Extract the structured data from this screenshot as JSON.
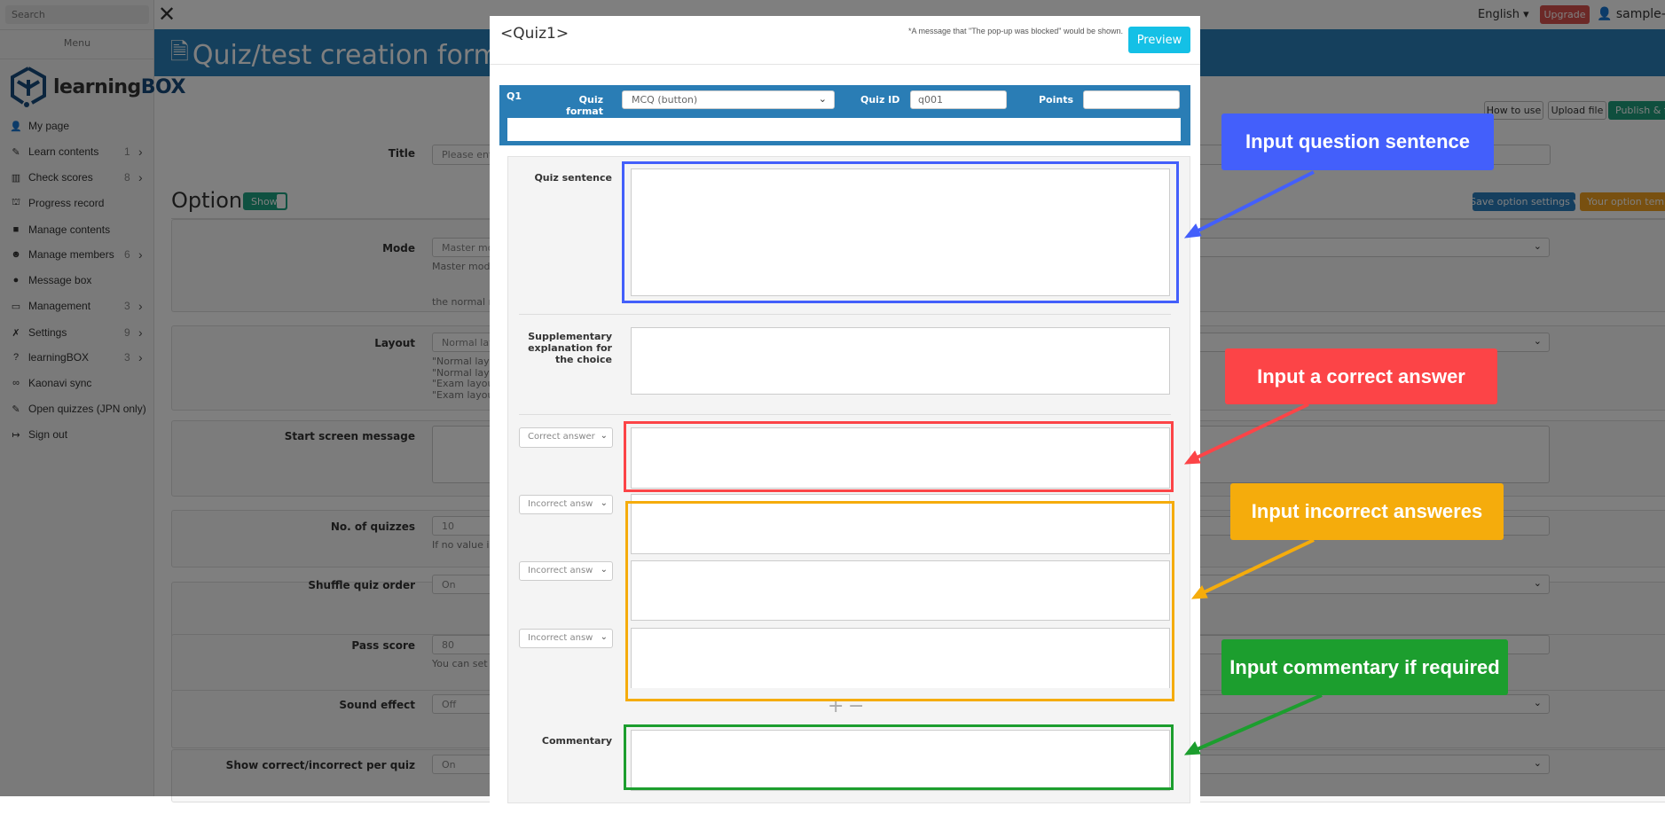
{
  "topbar": {
    "language": "English ▾",
    "upgrade": "Upgrade",
    "user": "sample-d"
  },
  "sidebar": {
    "search_placeholder": "Search",
    "menu_label": "Menu",
    "logo": "learningBOX",
    "items": [
      {
        "label": "My page",
        "icon": "user-icon",
        "glyph": "👤"
      },
      {
        "label": "Learn contents",
        "count": "1",
        "icon": "pencil-icon",
        "glyph": "✎"
      },
      {
        "label": "Check scores",
        "count": "8",
        "icon": "bar-chart-icon",
        "glyph": "▥"
      },
      {
        "label": "Progress record",
        "icon": "progress-icon",
        "glyph": "⛫"
      },
      {
        "label": "Manage contents",
        "icon": "folder-icon",
        "glyph": "■"
      },
      {
        "label": "Manage members",
        "count": "6",
        "icon": "users-icon",
        "glyph": "☻"
      },
      {
        "label": "Message box",
        "icon": "comments-icon",
        "glyph": "●"
      },
      {
        "label": "Management",
        "count": "3",
        "icon": "monitor-icon",
        "glyph": "▭"
      },
      {
        "label": "Settings",
        "count": "9",
        "icon": "wrench-icon",
        "glyph": "✗"
      },
      {
        "label": "learningBOX",
        "count": "3",
        "icon": "question-icon",
        "glyph": "?"
      },
      {
        "label": "Kaonavi sync",
        "icon": "link-icon",
        "glyph": "∞"
      },
      {
        "label": "Open quizzes (JPN only)",
        "icon": "pencil-icon",
        "glyph": "✎"
      },
      {
        "label": "Sign out",
        "icon": "sign-out-icon",
        "glyph": "↦"
      }
    ]
  },
  "page": {
    "title": "Quiz/test creation form",
    "buttons": {
      "how_to_use": "How to use",
      "upload_file": "Upload file",
      "publish": "Publish & fin"
    },
    "title_label": "Title",
    "title_placeholder": "Please enter",
    "options_heading": "Options",
    "options_toggle": "Show",
    "save_option_settings": "Save option settings ▾",
    "your_option_template": "Your option templa",
    "options": [
      {
        "label": "Mode",
        "value": "Master mod",
        "help": [
          "Master mode:",
          "",
          "the normal m"
        ]
      },
      {
        "label": "Layout",
        "value": "Normal layo",
        "help": [
          "\"Normal layou",
          "\"Normal layou",
          "\"Exam layout",
          "\"Exam layout"
        ]
      },
      {
        "label": "Start screen message",
        "value": ""
      },
      {
        "label": "No. of quizzes",
        "value": "10",
        "help": [
          "If no value is"
        ]
      },
      {
        "label": "Shuffle quiz order",
        "value": "On"
      },
      {
        "label": "Pass score",
        "value": "80",
        "help": [
          "You can set \"P"
        ]
      },
      {
        "label": "Sound effect",
        "value": "Off"
      },
      {
        "label": "Show correct/incorrect per quiz",
        "value": "On"
      }
    ]
  },
  "modal": {
    "title": "<Quiz1>",
    "popup_note": "*A message that \"The pop-up was blocked\" would be shown.",
    "preview": "Preview",
    "q_number": "Q1",
    "quiz_format_label": "Quiz format",
    "quiz_format_value": "MCQ (button)",
    "quiz_id_label": "Quiz ID",
    "quiz_id_value": "q001",
    "points_label": "Points",
    "points_value": "",
    "quiz_sentence_label": "Quiz sentence",
    "supplementary_label": "Supplementary explanation for the choice",
    "answers": [
      {
        "type": "Correct answer"
      },
      {
        "type": "Incorrect answ"
      },
      {
        "type": "Incorrect answ"
      },
      {
        "type": "Incorrect answ"
      }
    ],
    "add": "+",
    "remove": "−",
    "commentary_label": "Commentary"
  },
  "callouts": {
    "question": {
      "text": "Input question sentence",
      "color": "#435ffb"
    },
    "correct": {
      "text": "Input a correct answer",
      "color": "#fc4447"
    },
    "incorrect": {
      "text": "Input incorrect answeres",
      "color": "#f5ac0c"
    },
    "commentary": {
      "text": "Input commentary if required",
      "color": "#1c9e2e"
    }
  }
}
